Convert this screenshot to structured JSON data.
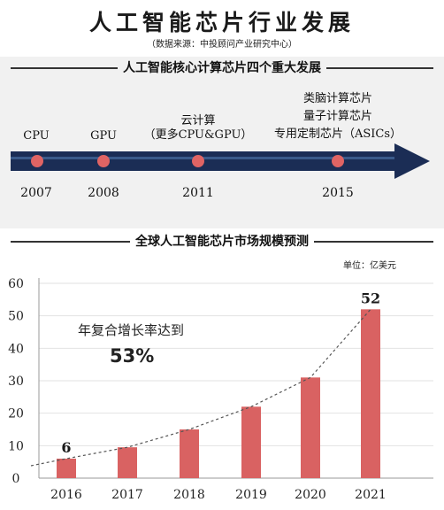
{
  "header": {
    "title": "人工智能芯片行业发展",
    "source": "（数据来源：中投顾问产业研究中心）"
  },
  "timeline": {
    "heading": "人工智能核心计算芯片四个重大发展",
    "milestones": [
      {
        "year": "2007",
        "label_lines": [
          "CPU"
        ]
      },
      {
        "year": "2008",
        "label_lines": [
          "GPU"
        ]
      },
      {
        "year": "2011",
        "label_lines": [
          "云计算",
          "（更多CPU&GPU）"
        ]
      },
      {
        "year": "2015",
        "label_lines": [
          "类脑计算芯片",
          "量子计算芯片",
          "专用定制芯片（ASICs）"
        ]
      }
    ],
    "colors": {
      "arrow": "#1b2d55",
      "dot": "#e06464",
      "band": "#3a5a8a"
    }
  },
  "chart_section": {
    "heading": "全球人工智能芯片市场规模预测",
    "unit": "单位：亿美元",
    "cagr_label": "年复合增长率达到",
    "cagr_value": "53%"
  },
  "chart_data": {
    "type": "bar",
    "categories": [
      "2016",
      "2017",
      "2018",
      "2019",
      "2020",
      "2021"
    ],
    "values": [
      6,
      9.5,
      15,
      22,
      31,
      52
    ],
    "data_labels": [
      {
        "index": 0,
        "text": "6"
      },
      {
        "index": 5,
        "text": "52"
      }
    ],
    "y_ticks": [
      "0",
      "10",
      "20",
      "30",
      "40",
      "50",
      "60"
    ],
    "ylim": [
      0,
      60
    ],
    "trend_line": "dashed",
    "colors": {
      "bar": "#d96262",
      "trend": "#555555"
    }
  }
}
